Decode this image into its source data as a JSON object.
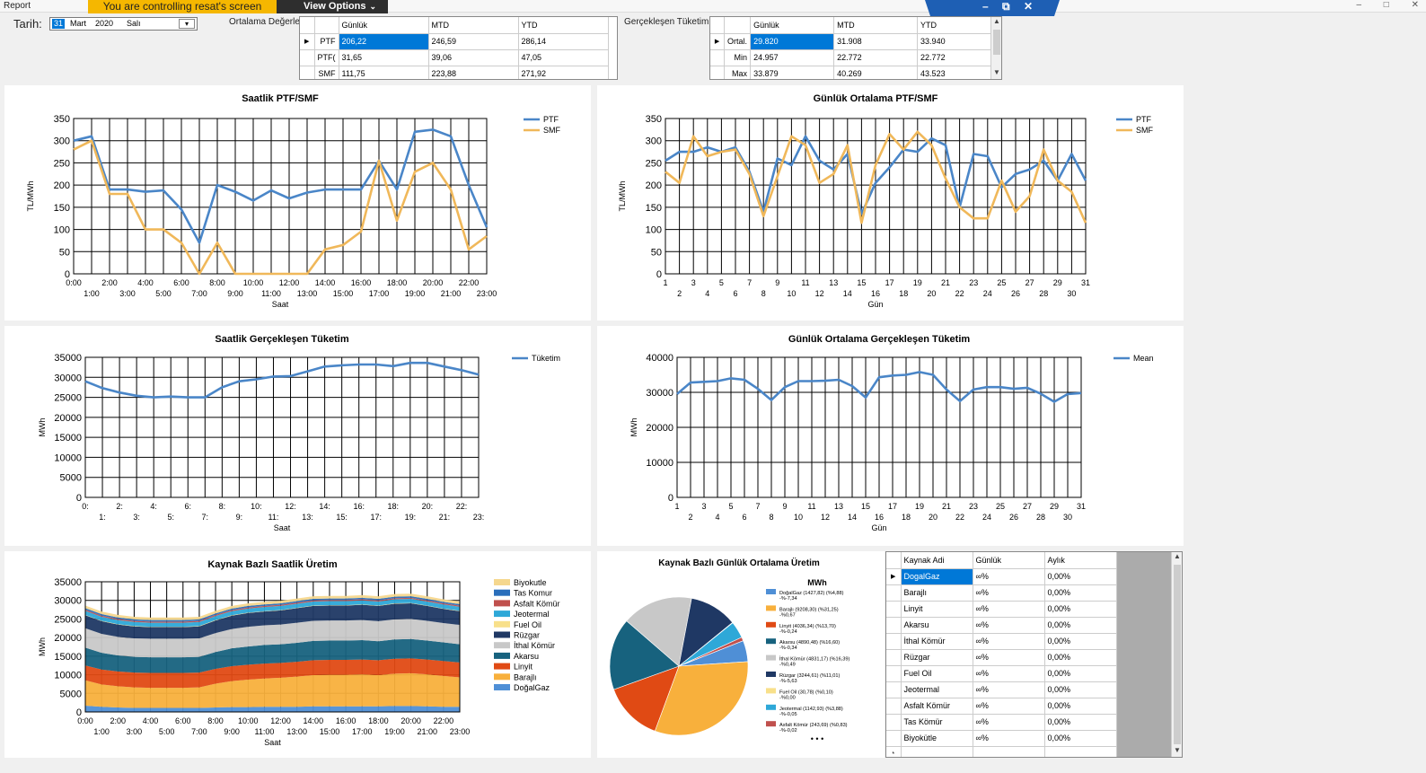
{
  "window": {
    "app_label": "Report",
    "control_banner": "You are controlling resat's screen",
    "view_options": "View Options",
    "remote_controls": [
      "–",
      "⧉",
      "✕"
    ],
    "window_controls": [
      "–",
      "□",
      "✕"
    ]
  },
  "date_picker": {
    "label": "Tarih:",
    "day": "31",
    "month": "Mart",
    "year": "2020",
    "weekday": "Salı"
  },
  "averages_grid": {
    "label": "Ortalama Değerler",
    "columns": [
      "Günlük",
      "MTD",
      "YTD"
    ],
    "rows": [
      {
        "name": "PTF",
        "values": [
          "206,22",
          "246,59",
          "286,14"
        ]
      },
      {
        "name": "PTF(",
        "values": [
          "31,65",
          "39,06",
          "47,05"
        ]
      },
      {
        "name": "SMF",
        "values": [
          "111,75",
          "223,88",
          "271,92"
        ]
      }
    ]
  },
  "consumption_grid": {
    "label": "Gerçekleşen Tüketim:",
    "columns": [
      "Günlük",
      "MTD",
      "YTD"
    ],
    "rows": [
      {
        "name": "Ortal.",
        "values": [
          "29.820",
          "31.908",
          "33.940"
        ]
      },
      {
        "name": "Min",
        "values": [
          "24.957",
          "22.772",
          "22.772"
        ]
      },
      {
        "name": "Max",
        "values": [
          "33.879",
          "40.269",
          "43.523"
        ]
      }
    ]
  },
  "colors": {
    "blue": "#4a86c8",
    "orange": "#f0b85a",
    "grid": "#000000"
  },
  "chart_data": [
    {
      "id": "hourly-price",
      "type": "line",
      "title": "Saatlik PTF/SMF",
      "xlabel": "Saat",
      "ylabel": "TL/MWh",
      "ylim": [
        0,
        350
      ],
      "yticks": [
        0,
        50,
        100,
        150,
        200,
        250,
        300,
        350
      ],
      "categories": [
        "0:00",
        "1:00",
        "2:00",
        "3:00",
        "4:00",
        "5:00",
        "6:00",
        "7:00",
        "8:00",
        "9:00",
        "10:00",
        "11:00",
        "12:00",
        "13:00",
        "14:00",
        "15:00",
        "16:00",
        "17:00",
        "18:00",
        "19:00",
        "20:00",
        "21:00",
        "22:00",
        "23:00"
      ],
      "legend": "top-right",
      "grid": true,
      "series": [
        {
          "name": "PTF",
          "color": "#4a86c8",
          "values": [
            300,
            310,
            190,
            190,
            185,
            188,
            145,
            70,
            200,
            185,
            165,
            188,
            170,
            183,
            190,
            190,
            190,
            255,
            190,
            320,
            325,
            310,
            200,
            105
          ]
        },
        {
          "name": "SMF",
          "color": "#f0b85a",
          "values": [
            280,
            300,
            180,
            180,
            100,
            100,
            70,
            0,
            70,
            0,
            0,
            0,
            0,
            0,
            55,
            65,
            95,
            255,
            120,
            230,
            250,
            190,
            55,
            85
          ]
        }
      ]
    },
    {
      "id": "daily-price",
      "type": "line",
      "title": "Günlük Ortalama PTF/SMF",
      "xlabel": "Gün",
      "ylabel": "TL/MWh",
      "ylim": [
        0,
        350
      ],
      "yticks": [
        0,
        50,
        100,
        150,
        200,
        250,
        300,
        350
      ],
      "categories": [
        "1",
        "2",
        "3",
        "4",
        "5",
        "6",
        "7",
        "8",
        "9",
        "10",
        "11",
        "12",
        "13",
        "14",
        "15",
        "16",
        "17",
        "18",
        "19",
        "20",
        "21",
        "22",
        "23",
        "24",
        "25",
        "26",
        "27",
        "28",
        "29",
        "30",
        "31"
      ],
      "legend": "top-right",
      "grid": true,
      "series": [
        {
          "name": "PTF",
          "color": "#4a86c8",
          "values": [
            255,
            275,
            275,
            285,
            275,
            285,
            230,
            140,
            260,
            245,
            310,
            255,
            235,
            270,
            135,
            205,
            240,
            280,
            275,
            305,
            290,
            150,
            270,
            265,
            195,
            225,
            235,
            255,
            210,
            270,
            210
          ]
        },
        {
          "name": "SMF",
          "color": "#f0b85a",
          "values": [
            230,
            205,
            310,
            265,
            275,
            280,
            225,
            130,
            220,
            310,
            290,
            205,
            225,
            290,
            115,
            245,
            315,
            280,
            320,
            290,
            215,
            150,
            125,
            125,
            210,
            140,
            175,
            280,
            210,
            185,
            115
          ]
        }
      ]
    },
    {
      "id": "hourly-consumption",
      "type": "line",
      "title": "Saatlik Gerçekleşen Tüketim",
      "xlabel": "Saat",
      "ylabel": "MWh",
      "ylim": [
        0,
        35000
      ],
      "yticks": [
        0,
        5000,
        10000,
        15000,
        20000,
        25000,
        30000,
        35000
      ],
      "categories": [
        "0:",
        "1:",
        "2:",
        "3:",
        "4:",
        "5:",
        "6:",
        "7:",
        "8:",
        "9:",
        "10:",
        "11:",
        "12:",
        "13:",
        "14:",
        "15:",
        "16:",
        "17:",
        "18:",
        "19:",
        "20:",
        "21:",
        "22:",
        "23:"
      ],
      "legend": "top-right",
      "grid": true,
      "series": [
        {
          "name": "Tüketim",
          "color": "#4a86c8",
          "values": [
            29000,
            27300,
            26200,
            25400,
            25000,
            25200,
            25000,
            25000,
            27500,
            29000,
            29500,
            30200,
            30300,
            31500,
            32700,
            33000,
            33200,
            33200,
            32800,
            33600,
            33600,
            32700,
            31800,
            30700
          ]
        }
      ]
    },
    {
      "id": "daily-consumption",
      "type": "line",
      "title": "Günlük Ortalama Gerçekleşen Tüketim",
      "xlabel": "Gün",
      "ylabel": "MWh",
      "ylim": [
        0,
        40000
      ],
      "yticks": [
        0,
        10000,
        20000,
        30000,
        40000
      ],
      "categories": [
        "1",
        "2",
        "3",
        "4",
        "5",
        "6",
        "7",
        "8",
        "9",
        "10",
        "11",
        "12",
        "13",
        "14",
        "15",
        "16",
        "17",
        "18",
        "19",
        "20",
        "21",
        "22",
        "23",
        "24",
        "25",
        "26",
        "27",
        "28",
        "29",
        "30",
        "31"
      ],
      "legend": "top-right",
      "grid": true,
      "series": [
        {
          "name": "Mean",
          "color": "#4a86c8",
          "values": [
            29500,
            32800,
            33000,
            33200,
            34000,
            33600,
            31000,
            27800,
            31500,
            33200,
            33200,
            33300,
            33600,
            31800,
            28500,
            34300,
            34800,
            35000,
            35800,
            35000,
            30800,
            27500,
            30800,
            31500,
            31500,
            31000,
            31300,
            29600,
            27300,
            29500,
            29800
          ]
        }
      ]
    },
    {
      "id": "source-hourly",
      "type": "area",
      "title": "Kaynak Bazlı Saatlik Üretim",
      "xlabel": "Saat",
      "ylabel": "MWh",
      "ylim": [
        0,
        35000
      ],
      "yticks": [
        0,
        5000,
        10000,
        15000,
        20000,
        25000,
        30000,
        35000
      ],
      "categories": [
        "0:00",
        "1:00",
        "2:00",
        "3:00",
        "4:00",
        "5:00",
        "6:00",
        "7:00",
        "8:00",
        "9:00",
        "10:00",
        "11:00",
        "12:00",
        "13:00",
        "14:00",
        "15:00",
        "16:00",
        "17:00",
        "18:00",
        "19:00",
        "20:00",
        "21:00",
        "22:00",
        "23:00"
      ],
      "legend": "right",
      "grid": true,
      "series": [
        {
          "name": "Biyokutle",
          "color": "#f5d78e",
          "values": [
            700,
            700,
            700,
            700,
            700,
            700,
            700,
            700,
            700,
            700,
            700,
            700,
            700,
            700,
            700,
            700,
            700,
            700,
            700,
            700,
            700,
            700,
            700,
            700
          ]
        },
        {
          "name": "Tas Komur",
          "color": "#2a6ebb",
          "values": [
            400,
            400,
            400,
            400,
            400,
            400,
            400,
            400,
            400,
            400,
            400,
            400,
            400,
            400,
            400,
            400,
            400,
            400,
            400,
            400,
            400,
            400,
            400,
            400
          ]
        },
        {
          "name": "Asfalt Kömür",
          "color": "#c0504d",
          "values": [
            300,
            300,
            300,
            300,
            300,
            300,
            300,
            300,
            300,
            300,
            300,
            300,
            300,
            300,
            300,
            300,
            300,
            300,
            300,
            300,
            300,
            300,
            300,
            300
          ]
        },
        {
          "name": "Jeotermal",
          "color": "#2ea8d8",
          "values": [
            1100,
            1100,
            1100,
            1100,
            1100,
            1100,
            1100,
            1100,
            1100,
            1100,
            1100,
            1100,
            1100,
            1100,
            1100,
            1100,
            1100,
            1100,
            1100,
            1100,
            1100,
            1100,
            1100,
            1100
          ]
        },
        {
          "name": "Fuel Oil",
          "color": "#f8e08a",
          "values": [
            100,
            100,
            100,
            100,
            100,
            100,
            100,
            100,
            100,
            100,
            100,
            100,
            100,
            100,
            100,
            100,
            100,
            100,
            100,
            100,
            100,
            100,
            100,
            100
          ]
        },
        {
          "name": "Rüzgar",
          "color": "#1f3864",
          "values": [
            3500,
            3400,
            3300,
            3200,
            3100,
            3100,
            3100,
            3200,
            3400,
            3600,
            3700,
            3700,
            3800,
            3900,
            4000,
            4000,
            4000,
            4100,
            4100,
            4200,
            4200,
            4000,
            3800,
            3700
          ]
        },
        {
          "name": "İthal Kömür",
          "color": "#c8c8c8",
          "values": [
            5200,
            5100,
            5000,
            5000,
            5000,
            5000,
            5000,
            5000,
            5100,
            5200,
            5300,
            5300,
            5300,
            5400,
            5400,
            5400,
            5400,
            5400,
            5400,
            5400,
            5400,
            5300,
            5200,
            5200
          ]
        },
        {
          "name": "Akarsu",
          "color": "#17627e",
          "values": [
            4800,
            4500,
            4300,
            4200,
            4200,
            4200,
            4200,
            4200,
            4500,
            4800,
            4900,
            5000,
            5000,
            5100,
            5200,
            5200,
            5200,
            5200,
            5100,
            5200,
            5200,
            5100,
            5000,
            4900
          ]
        },
        {
          "name": "Linyit",
          "color": "#e04a14",
          "values": [
            4000,
            4000,
            4000,
            4000,
            4000,
            4000,
            4000,
            4000,
            4000,
            4000,
            4000,
            4000,
            4000,
            4000,
            4000,
            4000,
            4000,
            4000,
            4000,
            4000,
            4000,
            4000,
            4000,
            4000
          ]
        },
        {
          "name": "Barajlı",
          "color": "#f8b03c",
          "values": [
            6800,
            6000,
            5700,
            5500,
            5400,
            5400,
            5400,
            5500,
            6400,
            7000,
            7400,
            7600,
            7800,
            8100,
            8400,
            8500,
            8500,
            8600,
            8400,
            8700,
            8800,
            8600,
            8300,
            7900
          ]
        },
        {
          "name": "DoğalGaz",
          "color": "#4f8fd6",
          "values": [
            1700,
            1400,
            1200,
            1100,
            1100,
            1100,
            1100,
            1100,
            1200,
            1300,
            1300,
            1400,
            1400,
            1400,
            1500,
            1500,
            1500,
            1500,
            1500,
            1600,
            1600,
            1500,
            1400,
            1400
          ]
        }
      ]
    },
    {
      "id": "source-daily-pie",
      "type": "pie",
      "title": "Kaynak Bazlı Günlük Ortalama Üretim",
      "legend_title": "MWh",
      "more": "• • •",
      "slices": [
        {
          "name": "DoğalGaz",
          "label": "DoğalGaz (1427,82) (%4,88)",
          "delta": "-%-7,34",
          "value": 4.88,
          "color": "#4f8fd6"
        },
        {
          "name": "Barajlı",
          "label": "Barajlı (9208,30) (%31,25)",
          "delta": "-%0,67",
          "value": 31.25,
          "color": "#f8b03c"
        },
        {
          "name": "Linyit",
          "label": "Linyit (4036,34) (%13,70)",
          "delta": "-%-0,24",
          "value": 13.7,
          "color": "#e04a14"
        },
        {
          "name": "Akarsu",
          "label": "Akarsu (4890,48) (%16,60)",
          "delta": "-%-0,34",
          "value": 16.6,
          "color": "#17627e"
        },
        {
          "name": "İthal Kömür",
          "label": "İthal Kömür (4831,17) (%16,39)",
          "delta": "-%0,49",
          "value": 16.39,
          "color": "#c8c8c8"
        },
        {
          "name": "Rüzgar",
          "label": "Rüzgar (3244,61) (%11,01)",
          "delta": "-%-5,63",
          "value": 11.01,
          "color": "#1f3864"
        },
        {
          "name": "Fuel Oil",
          "label": "Fuel Oil (30,78) (%0,10)",
          "delta": "-%0,00",
          "value": 0.1,
          "color": "#f8e08a"
        },
        {
          "name": "Jeotermal",
          "label": "Jeotermal (1142,93) (%3,88)",
          "delta": "-%-0,05",
          "value": 3.88,
          "color": "#2ea8d8"
        },
        {
          "name": "Asfalt Kömür",
          "label": "Asfalt Kömür (243,69) (%0,83)",
          "delta": "-%-0,02",
          "value": 0.83,
          "color": "#c0504d"
        }
      ]
    }
  ],
  "source_grid": {
    "columns": [
      "Kaynak Adi",
      "Günlük",
      "Aylık"
    ],
    "rows": [
      {
        "name": "DogalGaz",
        "daily": "∞%",
        "monthly": "0,00%"
      },
      {
        "name": "Barajlı",
        "daily": "∞%",
        "monthly": "0,00%"
      },
      {
        "name": "Linyit",
        "daily": "∞%",
        "monthly": "0,00%"
      },
      {
        "name": "Akarsu",
        "daily": "∞%",
        "monthly": "0,00%"
      },
      {
        "name": "İthal Kömür",
        "daily": "∞%",
        "monthly": "0,00%"
      },
      {
        "name": "Rüzgar",
        "daily": "∞%",
        "monthly": "0,00%"
      },
      {
        "name": "Fuel Oil",
        "daily": "∞%",
        "monthly": "0,00%"
      },
      {
        "name": "Jeotermal",
        "daily": "∞%",
        "monthly": "0,00%"
      },
      {
        "name": "Asfalt Kömür",
        "daily": "∞%",
        "monthly": "0,00%"
      },
      {
        "name": "Tas Kömür",
        "daily": "∞%",
        "monthly": "0,00%"
      },
      {
        "name": "Biyokütle",
        "daily": "∞%",
        "monthly": "0,00%"
      }
    ],
    "new_row_marker": "*"
  }
}
